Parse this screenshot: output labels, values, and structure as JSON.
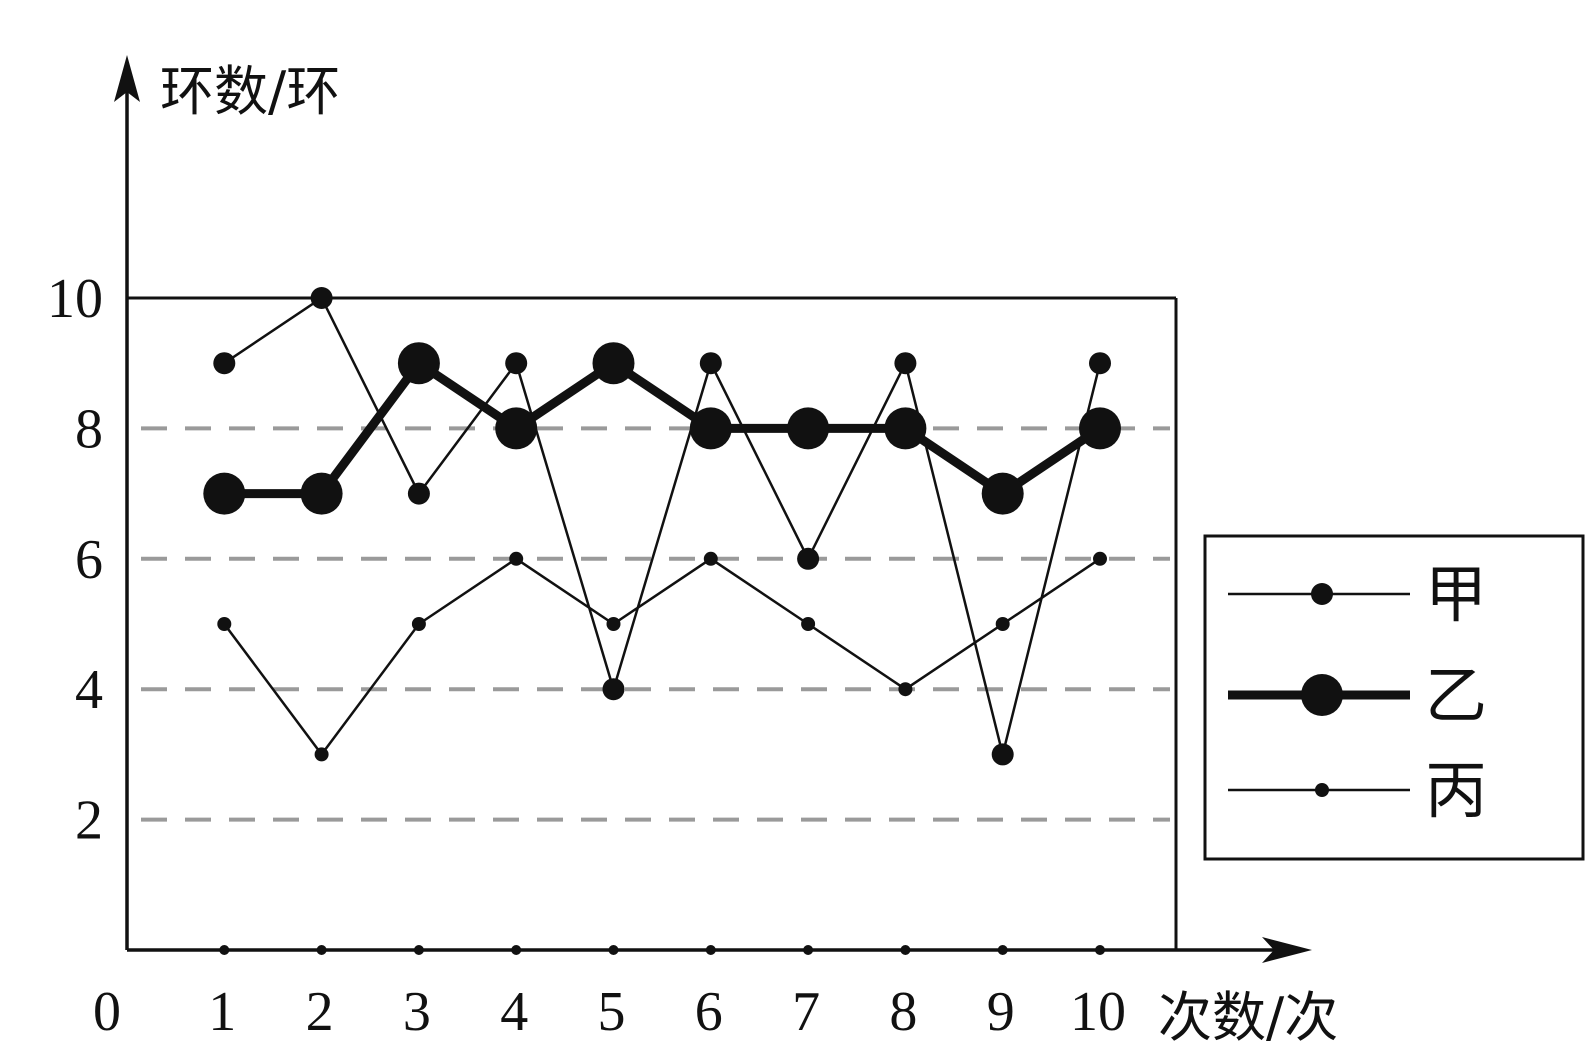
{
  "chart_data": {
    "type": "line",
    "ylabel": "环数/环",
    "xlabel": "次数/次",
    "origin_label": "0",
    "x": [
      1,
      2,
      3,
      4,
      5,
      6,
      7,
      8,
      9,
      10
    ],
    "x_tick_labels": [
      "1",
      "2",
      "3",
      "4",
      "5",
      "6",
      "7",
      "8",
      "9",
      "10"
    ],
    "y_tick_labels": [
      "2",
      "4",
      "6",
      "8",
      "10"
    ],
    "y_ticks": [
      2,
      4,
      6,
      8,
      10
    ],
    "xlim": [
      0,
      10.8
    ],
    "ylim": [
      0,
      10
    ],
    "grid": "dashed horizontal at 2, 4, 6, 8",
    "legend_position": "right",
    "series": [
      {
        "name": "甲",
        "style": "thin",
        "values": [
          9,
          10,
          7,
          9,
          4,
          9,
          6,
          9,
          3,
          9
        ]
      },
      {
        "name": "乙",
        "style": "bold",
        "values": [
          7,
          7,
          9,
          8,
          9,
          8,
          8,
          8,
          7,
          8
        ]
      },
      {
        "name": "丙",
        "style": "thin-small",
        "values": [
          5,
          3,
          5,
          6,
          5,
          6,
          5,
          4,
          5,
          6
        ]
      }
    ],
    "colors": {
      "line": "#111111",
      "grid": "#9a9a9a"
    }
  }
}
